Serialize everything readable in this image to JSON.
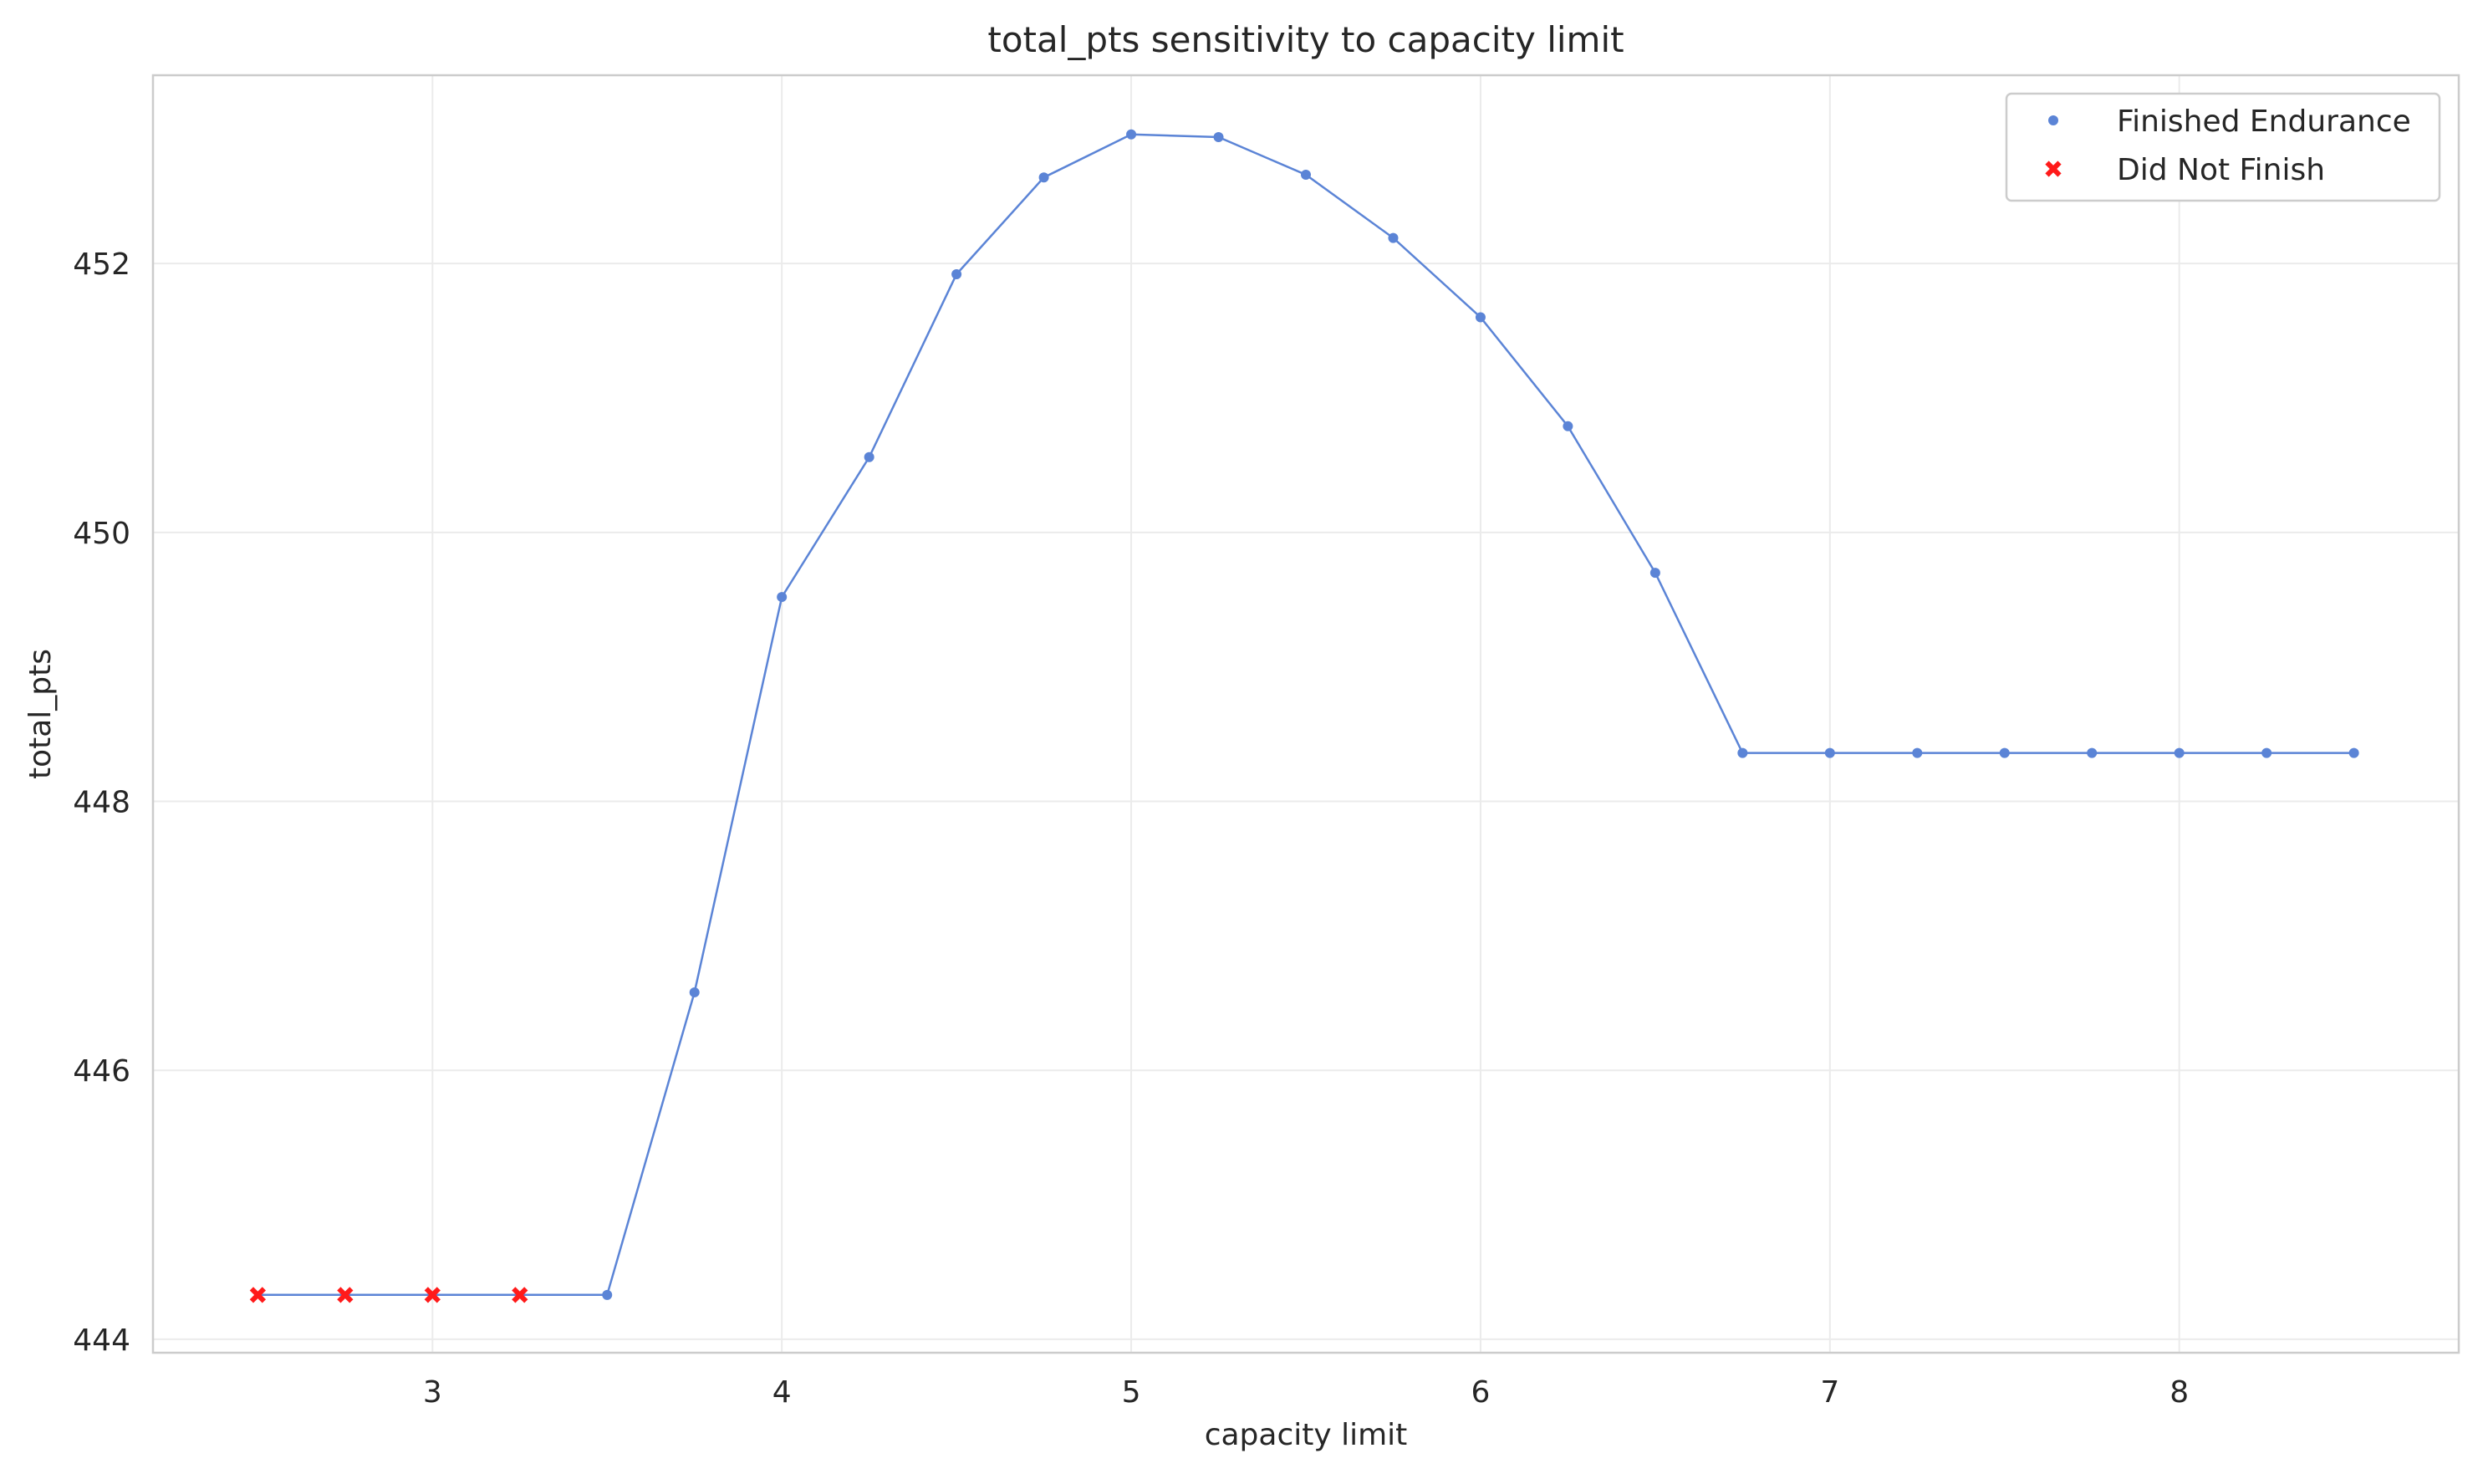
{
  "chart_data": {
    "type": "line",
    "title": "total_pts sensitivity to capacity limit",
    "xlabel": "capacity limit",
    "ylabel": "total_pts",
    "xlim": [
      2.2,
      8.8
    ],
    "ylim": [
      443.9,
      453.4
    ],
    "x_ticks": [
      3,
      4,
      5,
      6,
      7,
      8
    ],
    "y_ticks": [
      444,
      446,
      448,
      450,
      452
    ],
    "grid": true,
    "legend_position": "top-right",
    "line_color": "#5b84d6",
    "series": [
      {
        "name": "Finished Endurance",
        "marker": "dot",
        "color": "#5b84d6",
        "points": [
          [
            3.5,
            444.33
          ],
          [
            3.75,
            446.58
          ],
          [
            4.0,
            449.52
          ],
          [
            4.25,
            450.56
          ],
          [
            4.5,
            451.92
          ],
          [
            4.75,
            452.64
          ],
          [
            5.0,
            452.96
          ],
          [
            5.25,
            452.94
          ],
          [
            5.5,
            452.66
          ],
          [
            5.75,
            452.19
          ],
          [
            6.0,
            451.6
          ],
          [
            6.25,
            450.79
          ],
          [
            6.5,
            449.7
          ],
          [
            6.75,
            448.36
          ],
          [
            7.0,
            448.36
          ],
          [
            7.25,
            448.36
          ],
          [
            7.5,
            448.36
          ],
          [
            7.75,
            448.36
          ],
          [
            8.0,
            448.36
          ],
          [
            8.25,
            448.36
          ],
          [
            8.5,
            448.36
          ]
        ]
      },
      {
        "name": "Did Not Finish",
        "marker": "x",
        "color": "#ff1a1a",
        "points": [
          [
            2.5,
            444.33
          ],
          [
            2.75,
            444.33
          ],
          [
            3.0,
            444.33
          ],
          [
            3.25,
            444.33
          ]
        ]
      }
    ]
  }
}
